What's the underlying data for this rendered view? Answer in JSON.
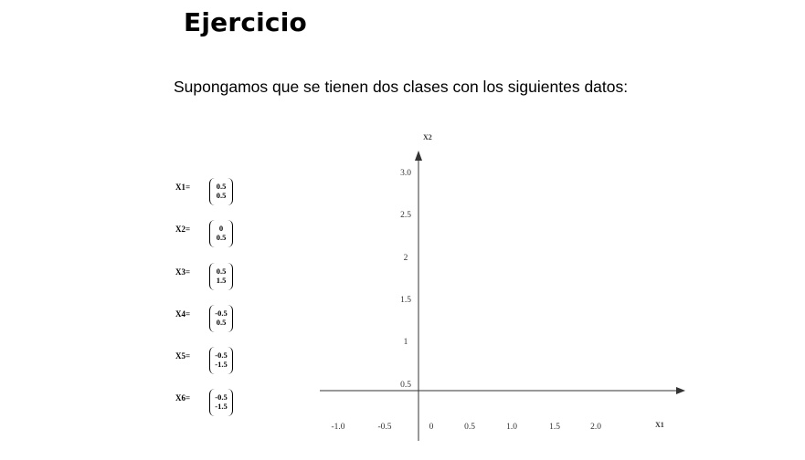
{
  "slide": {
    "title": "Ejercicio",
    "subtitle": "Supongamos que se tienen dos clases con los siguientes datos:"
  },
  "vectors": [
    {
      "label": "X1=",
      "top": "0.5",
      "bottom": "0.5"
    },
    {
      "label": "X2=",
      "top": "0",
      "bottom": "0.5"
    },
    {
      "label": "X3=",
      "top": "0.5",
      "bottom": "1.5"
    },
    {
      "label": "X4=",
      "top": "-0.5",
      "bottom": "0.5"
    },
    {
      "label": "X5=",
      "top": "-0.5",
      "bottom": "-1.5"
    },
    {
      "label": "X6=",
      "top": "-0.5",
      "bottom": "-1.5"
    }
  ],
  "chart_data": {
    "type": "scatter",
    "xlabel": "X1",
    "ylabel": "X2",
    "x_ticks": [
      "-1.0",
      "-0.5",
      "0",
      "0.5",
      "1.0",
      "1.5",
      "2.0"
    ],
    "y_ticks": [
      "3.0",
      "2.5",
      "2",
      "1.5",
      "1",
      "0.5"
    ],
    "points": [],
    "grid": false
  }
}
